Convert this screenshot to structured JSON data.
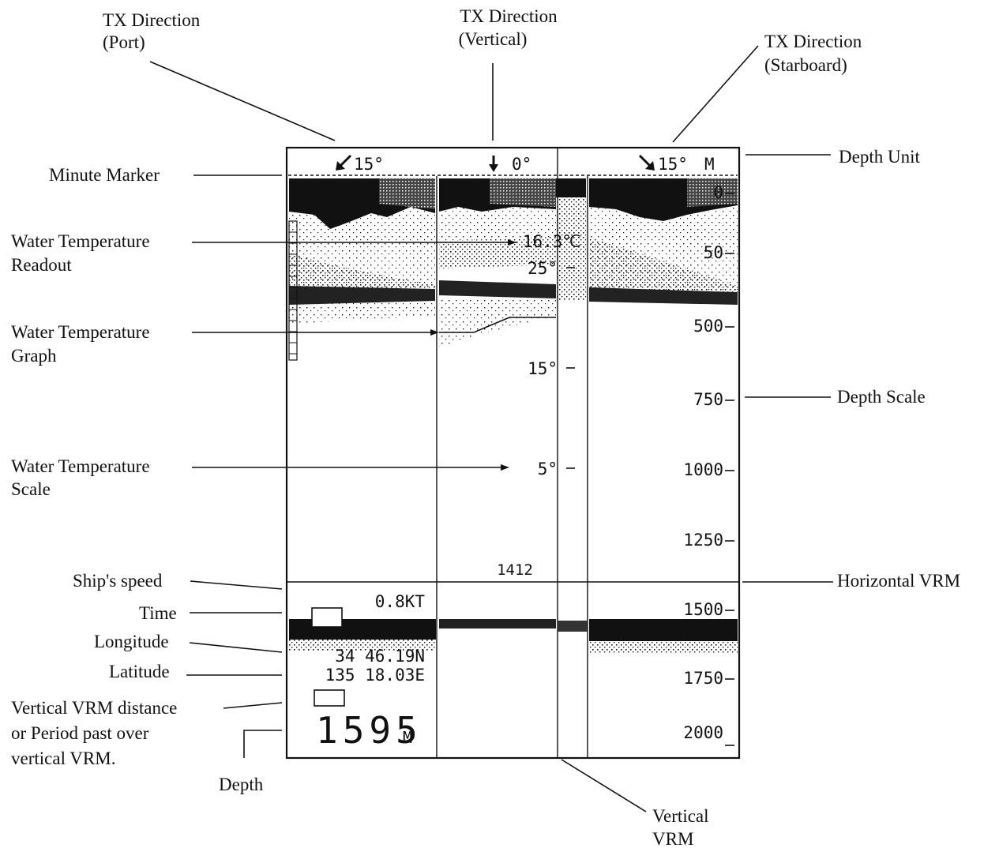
{
  "callouts": {
    "tx_port": [
      "TX Direction",
      "(Port)"
    ],
    "tx_vertical": [
      "TX Direction",
      "(Vertical)"
    ],
    "tx_starboard": [
      "TX Direction",
      "(Starboard)"
    ],
    "depth_unit": "Depth Unit",
    "minute_marker": "Minute Marker",
    "water_temp_readout": [
      "Water Temperature",
      "Readout"
    ],
    "water_temp_graph": [
      "Water Temperature",
      "Graph"
    ],
    "depth_scale": "Depth Scale",
    "water_temp_scale": [
      "Water Temperature",
      "Scale"
    ],
    "ships_speed": "Ship's speed",
    "horizontal_vrm": "Horizontal VRM",
    "time": "Time",
    "longitude": "Longitude",
    "latitude": "Latitude",
    "vertical_vrm_distance": [
      "Vertical VRM distance",
      "or Period past over",
      "vertical VRM."
    ],
    "depth": "Depth",
    "vertical_vrm": [
      "Vertical",
      "VRM"
    ]
  },
  "screen": {
    "tx_port_readout": "15°",
    "tx_vertical_readout": "0°",
    "tx_starboard_readout": "15°",
    "depth_unit": "M",
    "water_temp_value": "16.3℃",
    "temp_scale": [
      "25°",
      "15°",
      "5°"
    ],
    "depth_scale": [
      "0",
      "50",
      "500",
      "750",
      "1000",
      "1250",
      "1500",
      "1750",
      "2000"
    ],
    "vrm_depth_label": "1412",
    "ship_speed": "0.8KT",
    "latitude": "34 46.19N",
    "longitude": "135 18.03E",
    "depth_value": "1595",
    "depth_value_unit": "M"
  }
}
